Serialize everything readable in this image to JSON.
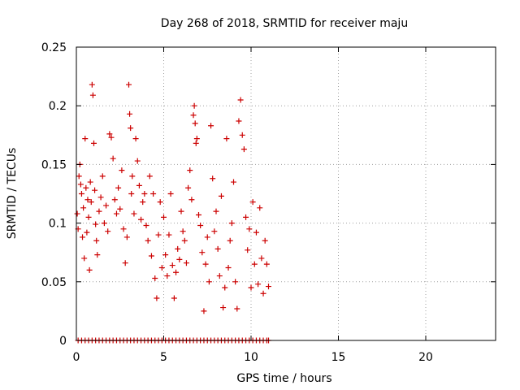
{
  "chart_data": {
    "type": "scatter",
    "title": "Day 268 of 2018, SRMTID for receiver maju",
    "xlabel": "GPS time / hours",
    "ylabel": "SRMTID / TECUs",
    "xlim": [
      0,
      24
    ],
    "ylim": [
      0,
      0.25
    ],
    "xticks": [
      0,
      5,
      10,
      15,
      20
    ],
    "xtick_labels": [
      "0",
      "5",
      "10",
      "15",
      "20"
    ],
    "yticks": [
      0,
      0.05,
      0.1,
      0.15,
      0.2,
      0.25
    ],
    "ytick_labels": [
      "0",
      "0.05",
      "0.1",
      "0.15",
      "0.2",
      "0.25"
    ],
    "grid": true,
    "marker": "+",
    "marker_color": "#cc0000",
    "series": [
      {
        "name": "SRMTID",
        "points": [
          [
            0.05,
            0.108
          ],
          [
            0.1,
            0.095
          ],
          [
            0.15,
            0.14
          ],
          [
            0.2,
            0.15
          ],
          [
            0.25,
            0.133
          ],
          [
            0.3,
            0.125
          ],
          [
            0.35,
            0.088
          ],
          [
            0.4,
            0.113
          ],
          [
            0.45,
            0.07
          ],
          [
            0.5,
            0.172
          ],
          [
            0.55,
            0.13
          ],
          [
            0.6,
            0.092
          ],
          [
            0.65,
            0.12
          ],
          [
            0.7,
            0.105
          ],
          [
            0.75,
            0.06
          ],
          [
            0.8,
            0.135
          ],
          [
            0.85,
            0.118
          ],
          [
            0.9,
            0.218
          ],
          [
            0.95,
            0.209
          ],
          [
            1.0,
            0.168
          ],
          [
            1.05,
            0.128
          ],
          [
            1.1,
            0.099
          ],
          [
            1.15,
            0.085
          ],
          [
            1.2,
            0.073
          ],
          [
            1.3,
            0.11
          ],
          [
            1.4,
            0.122
          ],
          [
            1.5,
            0.14
          ],
          [
            1.6,
            0.1
          ],
          [
            1.7,
            0.115
          ],
          [
            1.8,
            0.093
          ],
          [
            1.9,
            0.176
          ],
          [
            2.0,
            0.173
          ],
          [
            2.1,
            0.155
          ],
          [
            2.2,
            0.12
          ],
          [
            2.3,
            0.108
          ],
          [
            2.4,
            0.13
          ],
          [
            2.5,
            0.112
          ],
          [
            2.6,
            0.145
          ],
          [
            2.7,
            0.095
          ],
          [
            2.8,
            0.066
          ],
          [
            2.9,
            0.088
          ],
          [
            3.0,
            0.218
          ],
          [
            3.05,
            0.193
          ],
          [
            3.1,
            0.181
          ],
          [
            3.15,
            0.125
          ],
          [
            3.2,
            0.14
          ],
          [
            3.3,
            0.108
          ],
          [
            3.4,
            0.172
          ],
          [
            3.5,
            0.153
          ],
          [
            3.6,
            0.132
          ],
          [
            3.7,
            0.103
          ],
          [
            3.8,
            0.118
          ],
          [
            3.9,
            0.125
          ],
          [
            4.0,
            0.098
          ],
          [
            4.1,
            0.085
          ],
          [
            4.2,
            0.14
          ],
          [
            4.3,
            0.072
          ],
          [
            4.4,
            0.125
          ],
          [
            4.5,
            0.053
          ],
          [
            4.6,
            0.036
          ],
          [
            4.7,
            0.09
          ],
          [
            4.8,
            0.118
          ],
          [
            4.9,
            0.062
          ],
          [
            5.0,
            0.105
          ],
          [
            5.1,
            0.073
          ],
          [
            5.2,
            0.055
          ],
          [
            5.3,
            0.09
          ],
          [
            5.4,
            0.125
          ],
          [
            5.5,
            0.064
          ],
          [
            5.6,
            0.036
          ],
          [
            5.7,
            0.058
          ],
          [
            5.8,
            0.078
          ],
          [
            5.9,
            0.069
          ],
          [
            6.0,
            0.11
          ],
          [
            6.1,
            0.093
          ],
          [
            6.2,
            0.085
          ],
          [
            6.3,
            0.066
          ],
          [
            6.4,
            0.13
          ],
          [
            6.5,
            0.145
          ],
          [
            6.6,
            0.12
          ],
          [
            6.7,
            0.192
          ],
          [
            6.75,
            0.2
          ],
          [
            6.8,
            0.185
          ],
          [
            6.85,
            0.168
          ],
          [
            6.9,
            0.172
          ],
          [
            7.0,
            0.107
          ],
          [
            7.1,
            0.098
          ],
          [
            7.2,
            0.075
          ],
          [
            7.3,
            0.025
          ],
          [
            7.4,
            0.065
          ],
          [
            7.5,
            0.088
          ],
          [
            7.6,
            0.05
          ],
          [
            7.7,
            0.183
          ],
          [
            7.8,
            0.138
          ],
          [
            7.9,
            0.093
          ],
          [
            8.0,
            0.11
          ],
          [
            8.1,
            0.078
          ],
          [
            8.2,
            0.055
          ],
          [
            8.3,
            0.123
          ],
          [
            8.4,
            0.028
          ],
          [
            8.5,
            0.045
          ],
          [
            8.6,
            0.172
          ],
          [
            8.7,
            0.062
          ],
          [
            8.8,
            0.085
          ],
          [
            8.9,
            0.1
          ],
          [
            9.0,
            0.135
          ],
          [
            9.1,
            0.05
          ],
          [
            9.2,
            0.027
          ],
          [
            9.3,
            0.187
          ],
          [
            9.4,
            0.205
          ],
          [
            9.5,
            0.175
          ],
          [
            9.6,
            0.163
          ],
          [
            9.7,
            0.105
          ],
          [
            9.8,
            0.077
          ],
          [
            9.9,
            0.095
          ],
          [
            10.0,
            0.045
          ],
          [
            10.1,
            0.118
          ],
          [
            10.2,
            0.065
          ],
          [
            10.3,
            0.092
          ],
          [
            10.4,
            0.048
          ],
          [
            10.5,
            0.113
          ],
          [
            10.6,
            0.07
          ],
          [
            10.7,
            0.04
          ],
          [
            10.8,
            0.085
          ],
          [
            10.9,
            0.065
          ],
          [
            11.0,
            0.046
          ],
          [
            0.1,
            0
          ],
          [
            0.3,
            0
          ],
          [
            0.5,
            0
          ],
          [
            0.7,
            0
          ],
          [
            0.9,
            0
          ],
          [
            1.1,
            0
          ],
          [
            1.3,
            0
          ],
          [
            1.5,
            0
          ],
          [
            1.7,
            0
          ],
          [
            1.9,
            0
          ],
          [
            2.1,
            0
          ],
          [
            2.3,
            0
          ],
          [
            2.5,
            0
          ],
          [
            2.7,
            0
          ],
          [
            2.9,
            0
          ],
          [
            3.1,
            0
          ],
          [
            3.3,
            0
          ],
          [
            3.5,
            0
          ],
          [
            3.7,
            0
          ],
          [
            3.9,
            0
          ],
          [
            4.1,
            0
          ],
          [
            4.3,
            0
          ],
          [
            4.5,
            0
          ],
          [
            4.7,
            0
          ],
          [
            4.9,
            0
          ],
          [
            5.1,
            0
          ],
          [
            5.3,
            0
          ],
          [
            5.5,
            0
          ],
          [
            5.7,
            0
          ],
          [
            5.9,
            0
          ],
          [
            6.1,
            0
          ],
          [
            6.3,
            0
          ],
          [
            6.5,
            0
          ],
          [
            6.7,
            0
          ],
          [
            6.9,
            0
          ],
          [
            7.1,
            0
          ],
          [
            7.3,
            0
          ],
          [
            7.5,
            0
          ],
          [
            7.7,
            0
          ],
          [
            7.9,
            0
          ],
          [
            8.1,
            0
          ],
          [
            8.3,
            0
          ],
          [
            8.5,
            0
          ],
          [
            8.7,
            0
          ],
          [
            8.9,
            0
          ],
          [
            9.1,
            0
          ],
          [
            9.3,
            0
          ],
          [
            9.5,
            0
          ],
          [
            9.7,
            0
          ],
          [
            9.9,
            0
          ],
          [
            10.1,
            0
          ],
          [
            10.3,
            0
          ],
          [
            10.5,
            0
          ],
          [
            10.7,
            0
          ],
          [
            10.9,
            0
          ],
          [
            11.0,
            0
          ]
        ]
      }
    ]
  }
}
